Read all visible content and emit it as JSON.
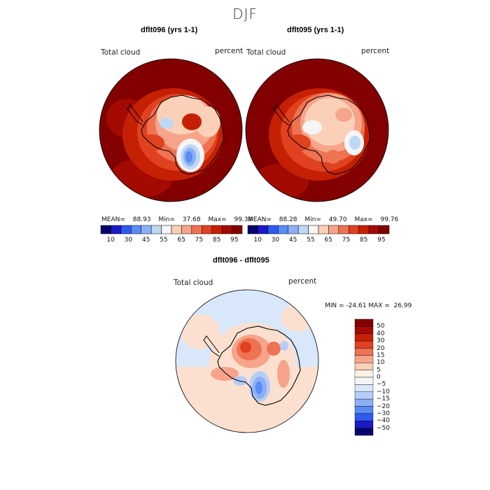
{
  "page": {
    "title": "DJF"
  },
  "panels": [
    {
      "title": "dflt096 (yrs 1-1)",
      "field_label": "Total cloud",
      "units": "percent",
      "stats": {
        "mean_label": "MEAN=",
        "mean": "88.93",
        "min_label": "Min=",
        "min": "37.68",
        "max_label": "Max=",
        "max": "99.39"
      }
    },
    {
      "title": "dflt095 (yrs 1-1)",
      "field_label": "Total cloud",
      "units": "percent",
      "stats": {
        "mean_label": "MEAN=",
        "mean": "88.28",
        "min_label": "Min=",
        "min": "49.70",
        "max_label": "Max=",
        "max": "99.76"
      }
    }
  ],
  "diff_panel": {
    "title": "dflt096 - dflt095",
    "field_label": "Total cloud",
    "units": "percent",
    "range_text": "MIN = -24.61 MAX =  26.99"
  },
  "colors": {
    "top_scale": [
      "#08046e",
      "#1a1ac8",
      "#2e5af0",
      "#5a8cf5",
      "#8cb0f5",
      "#bed7f5",
      "#f5f5f5",
      "#fbd0b8",
      "#f6a48a",
      "#ee7353",
      "#e0411e",
      "#c62004",
      "#a30a02",
      "#820000"
    ],
    "diff_scale": [
      "#820000",
      "#a30a02",
      "#c62004",
      "#e0411e",
      "#ee7353",
      "#f6a48a",
      "#fbd0b8",
      "#fff0e6",
      "#f5f5f5",
      "#d9e7fb",
      "#b5cdf8",
      "#8cb0f5",
      "#5a8cf5",
      "#2e5af0",
      "#1a1ac8",
      "#08046e"
    ],
    "land_outline": "#000000"
  },
  "chart_data": [
    {
      "type": "heatmap",
      "projection": "south polar stereographic",
      "title": "dflt096 (yrs 1-1)",
      "field": "Total cloud",
      "units": "percent",
      "mean": 88.93,
      "min": 37.68,
      "max": 99.39,
      "colorbar_ticks": [
        "10",
        "30",
        "45",
        "55",
        "65",
        "75",
        "85",
        "95"
      ]
    },
    {
      "type": "heatmap",
      "projection": "south polar stereographic",
      "title": "dflt095 (yrs 1-1)",
      "field": "Total cloud",
      "units": "percent",
      "mean": 88.28,
      "min": 49.7,
      "max": 99.76,
      "colorbar_ticks": [
        "10",
        "30",
        "45",
        "55",
        "65",
        "75",
        "85",
        "95"
      ]
    },
    {
      "type": "heatmap",
      "projection": "south polar stereographic",
      "title": "dflt096 - dflt095",
      "field": "Total cloud",
      "units": "percent",
      "min": -24.61,
      "max": 26.99,
      "colorbar_ticks": [
        "50",
        "40",
        "30",
        "20",
        "15",
        "10",
        "5",
        "0",
        "−5",
        "−10",
        "−15",
        "−20",
        "−30",
        "−40",
        "−50"
      ]
    }
  ]
}
